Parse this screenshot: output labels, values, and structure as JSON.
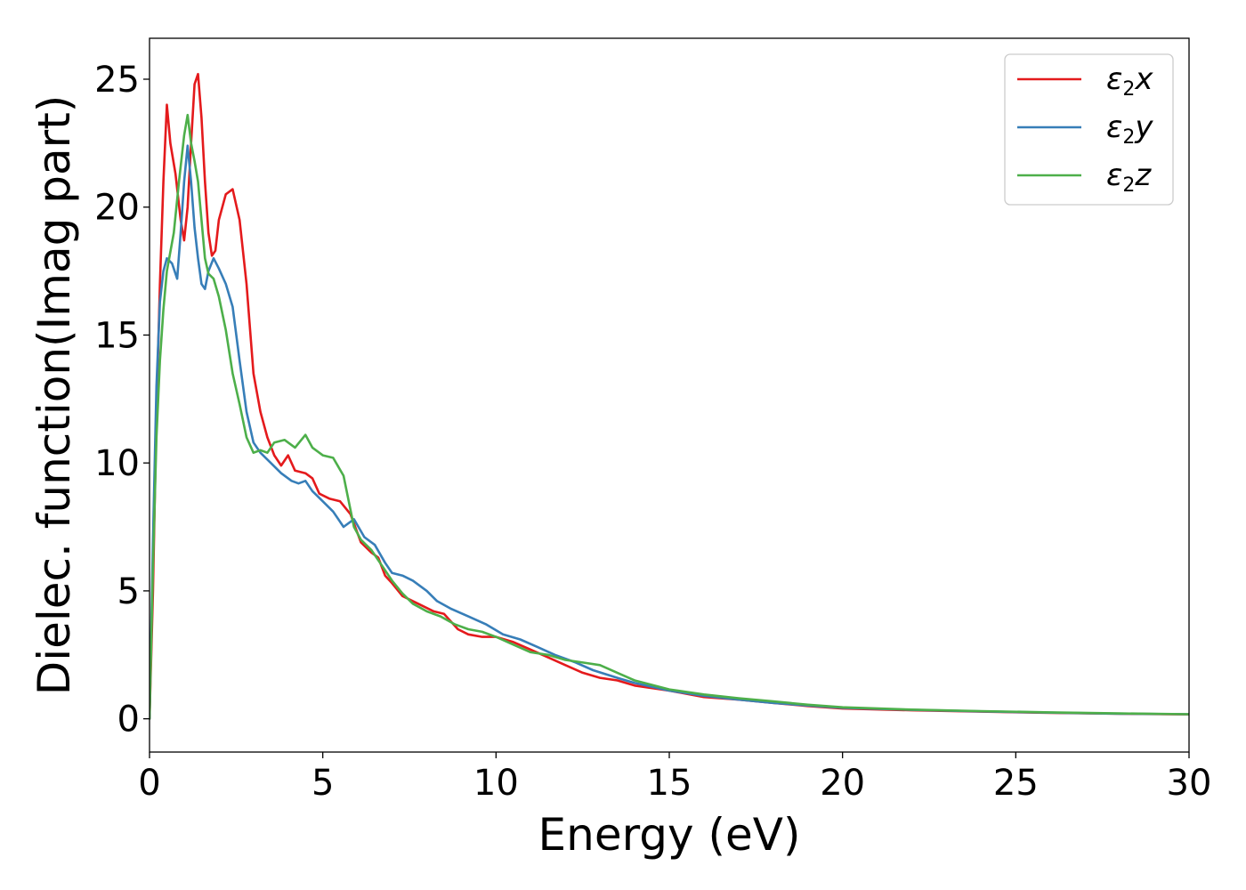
{
  "chart_data": {
    "type": "line",
    "xlabel": "Energy (eV)",
    "ylabel": "Dielec. function(Imag part)",
    "xlim": [
      0,
      30
    ],
    "ylim": [
      -1.3,
      26.6
    ],
    "xticks": [
      "0",
      "5",
      "10",
      "15",
      "20",
      "25",
      "30"
    ],
    "yticks": [
      "0",
      "5",
      "10",
      "15",
      "20",
      "25"
    ],
    "grid": false,
    "legend_position": "top-right",
    "series": [
      {
        "name": "ε₂x",
        "legend": {
          "base": "ε",
          "sub": "2",
          "suffix": "x"
        },
        "color": "#e41a1c",
        "points": [
          [
            0,
            0
          ],
          [
            0.1,
            5
          ],
          [
            0.2,
            12
          ],
          [
            0.3,
            17
          ],
          [
            0.4,
            21
          ],
          [
            0.5,
            24
          ],
          [
            0.6,
            22.5
          ],
          [
            0.75,
            21.3
          ],
          [
            0.9,
            19.5
          ],
          [
            1.0,
            18.7
          ],
          [
            1.1,
            20
          ],
          [
            1.2,
            22.5
          ],
          [
            1.3,
            24.8
          ],
          [
            1.4,
            25.2
          ],
          [
            1.5,
            23.5
          ],
          [
            1.6,
            21
          ],
          [
            1.7,
            19
          ],
          [
            1.8,
            18.1
          ],
          [
            1.9,
            18.3
          ],
          [
            2.0,
            19.5
          ],
          [
            2.2,
            20.5
          ],
          [
            2.4,
            20.7
          ],
          [
            2.6,
            19.5
          ],
          [
            2.8,
            17
          ],
          [
            3.0,
            13.5
          ],
          [
            3.2,
            12
          ],
          [
            3.4,
            11
          ],
          [
            3.6,
            10.3
          ],
          [
            3.8,
            9.9
          ],
          [
            4.0,
            10.3
          ],
          [
            4.2,
            9.7
          ],
          [
            4.5,
            9.6
          ],
          [
            4.7,
            9.4
          ],
          [
            4.9,
            8.8
          ],
          [
            5.2,
            8.6
          ],
          [
            5.5,
            8.5
          ],
          [
            5.8,
            8
          ],
          [
            6.1,
            6.9
          ],
          [
            6.4,
            6.5
          ],
          [
            6.6,
            6.3
          ],
          [
            6.8,
            5.6
          ],
          [
            7.0,
            5.3
          ],
          [
            7.3,
            4.8
          ],
          [
            7.6,
            4.6
          ],
          [
            7.9,
            4.4
          ],
          [
            8.2,
            4.2
          ],
          [
            8.5,
            4.1
          ],
          [
            8.9,
            3.5
          ],
          [
            9.2,
            3.3
          ],
          [
            9.6,
            3.2
          ],
          [
            10,
            3.2
          ],
          [
            10.5,
            3.0
          ],
          [
            11,
            2.7
          ],
          [
            11.5,
            2.4
          ],
          [
            12,
            2.1
          ],
          [
            12.5,
            1.8
          ],
          [
            13,
            1.6
          ],
          [
            13.5,
            1.5
          ],
          [
            14,
            1.3
          ],
          [
            15,
            1.1
          ],
          [
            16,
            0.85
          ],
          [
            17,
            0.75
          ],
          [
            18,
            0.62
          ],
          [
            19,
            0.5
          ],
          [
            20,
            0.4
          ],
          [
            22,
            0.33
          ],
          [
            24,
            0.28
          ],
          [
            26,
            0.23
          ],
          [
            28,
            0.2
          ],
          [
            30,
            0.17
          ]
        ]
      },
      {
        "name": "ε₂y",
        "legend": {
          "base": "ε",
          "sub": "2",
          "suffix": "y"
        },
        "color": "#377eb8",
        "points": [
          [
            0,
            0
          ],
          [
            0.1,
            7
          ],
          [
            0.2,
            13
          ],
          [
            0.3,
            16.3
          ],
          [
            0.4,
            17.5
          ],
          [
            0.5,
            18
          ],
          [
            0.65,
            17.8
          ],
          [
            0.8,
            17.2
          ],
          [
            0.9,
            19
          ],
          [
            1.0,
            21
          ],
          [
            1.1,
            22.4
          ],
          [
            1.2,
            21
          ],
          [
            1.3,
            19.2
          ],
          [
            1.4,
            18
          ],
          [
            1.5,
            17
          ],
          [
            1.6,
            16.8
          ],
          [
            1.7,
            17.5
          ],
          [
            1.85,
            18
          ],
          [
            2.0,
            17.6
          ],
          [
            2.2,
            17
          ],
          [
            2.4,
            16.1
          ],
          [
            2.6,
            14
          ],
          [
            2.8,
            12
          ],
          [
            3.0,
            10.8
          ],
          [
            3.2,
            10.4
          ],
          [
            3.5,
            10
          ],
          [
            3.8,
            9.6
          ],
          [
            4.1,
            9.3
          ],
          [
            4.3,
            9.2
          ],
          [
            4.5,
            9.3
          ],
          [
            4.7,
            8.9
          ],
          [
            5.0,
            8.5
          ],
          [
            5.3,
            8.1
          ],
          [
            5.6,
            7.5
          ],
          [
            5.9,
            7.8
          ],
          [
            6.2,
            7.1
          ],
          [
            6.5,
            6.8
          ],
          [
            6.8,
            6.1
          ],
          [
            7.0,
            5.7
          ],
          [
            7.3,
            5.6
          ],
          [
            7.6,
            5.4
          ],
          [
            8.0,
            5
          ],
          [
            8.3,
            4.6
          ],
          [
            8.7,
            4.3
          ],
          [
            9.2,
            4
          ],
          [
            9.7,
            3.7
          ],
          [
            10.2,
            3.3
          ],
          [
            10.7,
            3.1
          ],
          [
            11.2,
            2.8
          ],
          [
            11.7,
            2.5
          ],
          [
            12.3,
            2.2
          ],
          [
            12.8,
            1.9
          ],
          [
            13.5,
            1.6
          ],
          [
            14,
            1.4
          ],
          [
            15,
            1.1
          ],
          [
            16,
            0.9
          ],
          [
            17,
            0.75
          ],
          [
            18,
            0.62
          ],
          [
            19,
            0.52
          ],
          [
            20,
            0.43
          ],
          [
            22,
            0.35
          ],
          [
            24,
            0.29
          ],
          [
            26,
            0.24
          ],
          [
            28,
            0.2
          ],
          [
            30,
            0.18
          ]
        ]
      },
      {
        "name": "ε₂z",
        "legend": {
          "base": "ε",
          "sub": "2",
          "suffix": "z"
        },
        "color": "#4daf4a",
        "points": [
          [
            0,
            0
          ],
          [
            0.1,
            6
          ],
          [
            0.2,
            11
          ],
          [
            0.3,
            14
          ],
          [
            0.4,
            16
          ],
          [
            0.5,
            17.5
          ],
          [
            0.7,
            19
          ],
          [
            0.85,
            21
          ],
          [
            1.0,
            22.8
          ],
          [
            1.1,
            23.6
          ],
          [
            1.2,
            22.5
          ],
          [
            1.3,
            21.8
          ],
          [
            1.4,
            21
          ],
          [
            1.5,
            19.5
          ],
          [
            1.6,
            18
          ],
          [
            1.7,
            17.4
          ],
          [
            1.85,
            17.2
          ],
          [
            2.0,
            16.5
          ],
          [
            2.2,
            15.2
          ],
          [
            2.4,
            13.5
          ],
          [
            2.6,
            12.3
          ],
          [
            2.8,
            11
          ],
          [
            3.0,
            10.4
          ],
          [
            3.2,
            10.5
          ],
          [
            3.4,
            10.4
          ],
          [
            3.6,
            10.8
          ],
          [
            3.9,
            10.9
          ],
          [
            4.2,
            10.6
          ],
          [
            4.5,
            11.1
          ],
          [
            4.7,
            10.6
          ],
          [
            5.0,
            10.3
          ],
          [
            5.3,
            10.2
          ],
          [
            5.6,
            9.5
          ],
          [
            5.9,
            7.5
          ],
          [
            6.1,
            7
          ],
          [
            6.4,
            6.6
          ],
          [
            6.7,
            6
          ],
          [
            7.0,
            5.4
          ],
          [
            7.3,
            4.9
          ],
          [
            7.6,
            4.5
          ],
          [
            8.0,
            4.2
          ],
          [
            8.4,
            4
          ],
          [
            8.8,
            3.7
          ],
          [
            9.2,
            3.5
          ],
          [
            9.6,
            3.4
          ],
          [
            10,
            3.2
          ],
          [
            10.5,
            2.9
          ],
          [
            11,
            2.6
          ],
          [
            11.5,
            2.5
          ],
          [
            12,
            2.3
          ],
          [
            12.5,
            2.2
          ],
          [
            13,
            2.1
          ],
          [
            13.5,
            1.8
          ],
          [
            14,
            1.5
          ],
          [
            15,
            1.15
          ],
          [
            16,
            0.95
          ],
          [
            17,
            0.8
          ],
          [
            18,
            0.68
          ],
          [
            19,
            0.55
          ],
          [
            20,
            0.45
          ],
          [
            22,
            0.36
          ],
          [
            24,
            0.3
          ],
          [
            26,
            0.25
          ],
          [
            28,
            0.21
          ],
          [
            30,
            0.18
          ]
        ]
      }
    ]
  }
}
